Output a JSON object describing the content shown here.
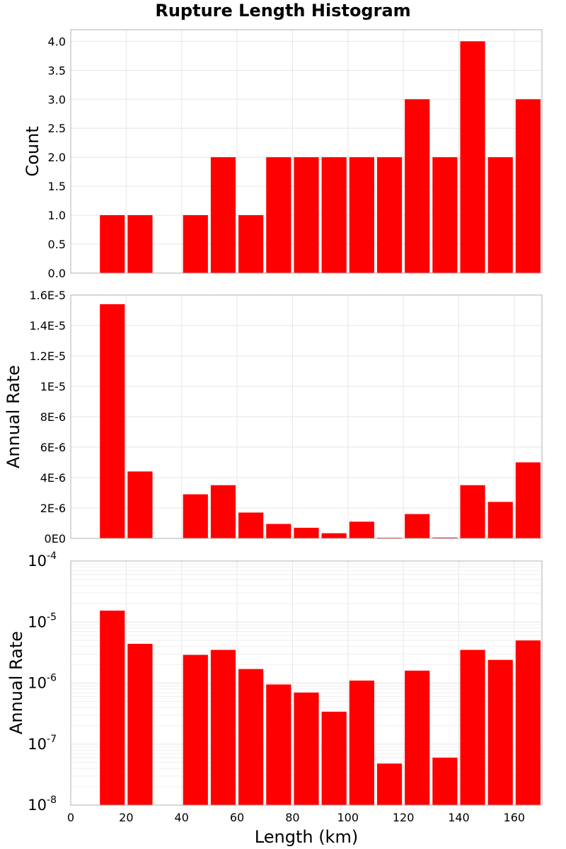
{
  "chart_data": [
    {
      "type": "bar",
      "title": "Rupture Length Histogram",
      "xlabel": "",
      "ylabel": "Count",
      "xlim": [
        0,
        170
      ],
      "ylim": [
        0,
        4.2
      ],
      "xticks": [
        0,
        20,
        40,
        60,
        80,
        100,
        120,
        140,
        160
      ],
      "yticks": [
        "0.0",
        "0.5",
        "1.0",
        "1.5",
        "2.0",
        "2.5",
        "3.0",
        "3.5",
        "4.0"
      ],
      "bin_width": 10,
      "bin_centers": [
        15,
        25,
        35,
        45,
        55,
        65,
        75,
        85,
        95,
        105,
        115,
        125,
        135,
        145,
        155,
        165
      ],
      "values": [
        1,
        1,
        0,
        1,
        2,
        1,
        2,
        2,
        2,
        2,
        2,
        3,
        2,
        4,
        2,
        3
      ]
    },
    {
      "type": "bar",
      "xlabel": "",
      "ylabel": "Annual Rate",
      "xlim": [
        0,
        170
      ],
      "ylim": [
        0,
        1.6e-05
      ],
      "yscale": "linear",
      "yticks": [
        "0E0",
        "2E-6",
        "4E-6",
        "6E-6",
        "8E-6",
        "1E-5",
        "1.2E-5",
        "1.4E-5",
        "1.6E-5"
      ],
      "bin_width": 10,
      "bin_centers": [
        15,
        25,
        35,
        45,
        55,
        65,
        75,
        85,
        95,
        105,
        115,
        125,
        135,
        145,
        155,
        165
      ],
      "values": [
        1.54e-05,
        4.4e-06,
        0,
        2.9e-06,
        3.5e-06,
        1.7e-06,
        9.5e-07,
        7e-07,
        3.4e-07,
        1.1e-06,
        4.8e-08,
        1.6e-06,
        6e-08,
        3.5e-06,
        2.4e-06,
        5e-06
      ]
    },
    {
      "type": "bar",
      "xlabel": "Length (km)",
      "ylabel": "Annual Rate",
      "xlim": [
        0,
        170
      ],
      "ylim": [
        1e-08,
        0.0001
      ],
      "yscale": "log",
      "yticks": [
        {
          "base": "10",
          "exp": "-8"
        },
        {
          "base": "10",
          "exp": "-7"
        },
        {
          "base": "10",
          "exp": "-6"
        },
        {
          "base": "10",
          "exp": "-5"
        },
        {
          "base": "10",
          "exp": "-4"
        }
      ],
      "xticks": [
        0,
        20,
        40,
        60,
        80,
        100,
        120,
        140,
        160
      ],
      "bin_width": 10,
      "bin_centers": [
        15,
        25,
        35,
        45,
        55,
        65,
        75,
        85,
        95,
        105,
        115,
        125,
        135,
        145,
        155,
        165
      ],
      "values": [
        1.54e-05,
        4.4e-06,
        0,
        2.9e-06,
        3.5e-06,
        1.7e-06,
        9.5e-07,
        7e-07,
        3.4e-07,
        1.1e-06,
        4.8e-08,
        1.6e-06,
        6e-08,
        3.5e-06,
        2.4e-06,
        5e-06
      ]
    }
  ],
  "colors": {
    "bar": "#ff0000"
  }
}
